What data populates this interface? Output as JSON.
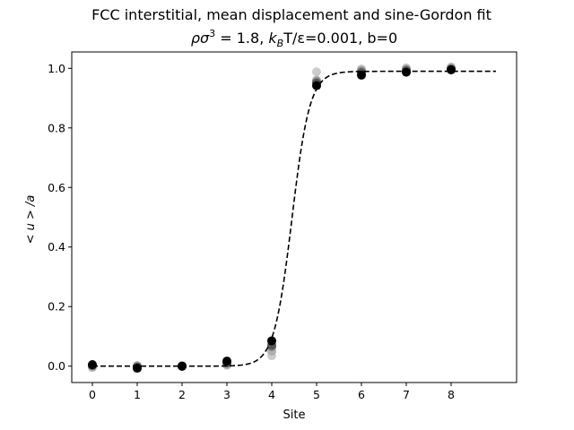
{
  "chart_data": {
    "type": "scatter",
    "title": "FCC interstitial, mean displacement and sine-Gordon fit",
    "subtitle": {
      "rho_symbol": "ρσ",
      "rho_exp": "3",
      "rho_value": " = 1.8, ",
      "k": "k",
      "k_sub": "B",
      "temp_value": "T/ε=0.001, b=0"
    },
    "xlabel": "Site",
    "ylabel": "< u > /a",
    "xlim": [
      -0.46,
      9.46
    ],
    "ylim": [
      -0.055,
      1.055
    ],
    "xticks": [
      0,
      1,
      2,
      3,
      4,
      5,
      6,
      7,
      8
    ],
    "yticks": [
      0.0,
      0.2,
      0.4,
      0.6,
      0.8,
      1.0
    ],
    "ytick_labels": [
      "0.0",
      "0.2",
      "0.4",
      "0.6",
      "0.8",
      "1.0"
    ],
    "grid": false,
    "series": [
      {
        "color": "#cccccc",
        "points": [
          [
            0,
            0.0
          ],
          [
            1,
            0.0
          ],
          [
            2,
            0.002
          ],
          [
            3,
            0.003
          ],
          [
            4,
            0.035
          ],
          [
            5,
            0.988
          ],
          [
            6,
            0.998
          ],
          [
            7,
            1.002
          ],
          [
            8,
            1.005
          ]
        ]
      },
      {
        "color": "#b0b0b0",
        "points": [
          [
            0,
            -0.004
          ],
          [
            1,
            0.002
          ],
          [
            2,
            0.001
          ],
          [
            3,
            0.005
          ],
          [
            4,
            0.05
          ],
          [
            5,
            0.96
          ],
          [
            6,
            0.994
          ],
          [
            7,
            0.998
          ],
          [
            8,
            1.002
          ]
        ]
      },
      {
        "color": "#888888",
        "points": [
          [
            0,
            0.003
          ],
          [
            1,
            -0.002
          ],
          [
            2,
            -0.001
          ],
          [
            3,
            0.01
          ],
          [
            4,
            0.065
          ],
          [
            5,
            0.955
          ],
          [
            6,
            0.99
          ],
          [
            7,
            0.995
          ],
          [
            8,
            0.999
          ]
        ]
      },
      {
        "color": "#555555",
        "points": [
          [
            0,
            0.002
          ],
          [
            1,
            -0.003
          ],
          [
            2,
            0.0
          ],
          [
            3,
            0.012
          ],
          [
            4,
            0.07
          ],
          [
            5,
            0.95
          ],
          [
            6,
            0.985
          ],
          [
            7,
            0.992
          ],
          [
            8,
            0.997
          ]
        ]
      },
      {
        "color": "#000000",
        "points": [
          [
            0,
            0.005
          ],
          [
            1,
            -0.007
          ],
          [
            2,
            0.0
          ],
          [
            3,
            0.017
          ],
          [
            4,
            0.085
          ],
          [
            5,
            0.942
          ],
          [
            6,
            0.977
          ],
          [
            7,
            0.987
          ],
          [
            8,
            0.995
          ]
        ]
      }
    ],
    "fit": {
      "style": "dashed",
      "color": "#000000",
      "x_range": [
        0,
        9
      ],
      "amplitude": 0.99,
      "center": 4.45,
      "width": 0.2
    }
  }
}
